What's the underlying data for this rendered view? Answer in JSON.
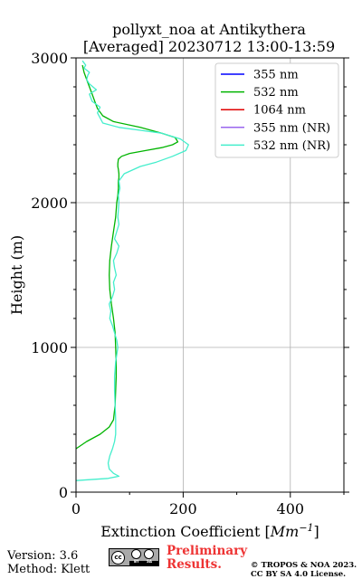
{
  "chart_data": {
    "type": "line",
    "title_line1": "pollyxt_noa at Antikythera",
    "title_line2": "[Averaged] 20230712 13:00-13:59",
    "xlabel_main": "Extinction Coefficient [",
    "xlabel_unit_base": "Mm",
    "xlabel_unit_exp": "−1",
    "xlabel_close": "]",
    "ylabel": "Height (m)",
    "xlim": [
      0,
      500
    ],
    "ylim": [
      0,
      3000
    ],
    "x_ticks": [
      0,
      200,
      400
    ],
    "x_tick_labels": [
      "0",
      "200",
      "400"
    ],
    "y_ticks": [
      0,
      1000,
      2000,
      3000
    ],
    "y_tick_labels": [
      "0",
      "1000",
      "2000",
      "3000"
    ],
    "grid": true,
    "legend_placement": "top-right",
    "series": [
      {
        "name": "355 nm",
        "color": "#0000ff",
        "x": [],
        "y": []
      },
      {
        "name": "532 nm",
        "color": "#00b400",
        "x": [
          0,
          20,
          45,
          62,
          70,
          73,
          74,
          75,
          75,
          74,
          73,
          70,
          66,
          63,
          62,
          63,
          66,
          70,
          74,
          76,
          78,
          79,
          79,
          80,
          80,
          79,
          78,
          78,
          79,
          85,
          100,
          130,
          160,
          180,
          190,
          185,
          160,
          120,
          70,
          50,
          40,
          35,
          30,
          25,
          20,
          15,
          12
        ],
        "y": [
          300,
          350,
          400,
          450,
          500,
          600,
          700,
          800,
          900,
          1000,
          1100,
          1200,
          1300,
          1400,
          1500,
          1600,
          1700,
          1800,
          1900,
          2000,
          2050,
          2100,
          2150,
          2170,
          2200,
          2230,
          2250,
          2270,
          2300,
          2320,
          2340,
          2360,
          2380,
          2400,
          2420,
          2450,
          2480,
          2520,
          2560,
          2600,
          2650,
          2700,
          2750,
          2800,
          2850,
          2900,
          2950
        ]
      },
      {
        "name": "1064 nm",
        "color": "#e00000",
        "x": [],
        "y": []
      },
      {
        "name": "355 nm (NR)",
        "color": "#9966ee",
        "x": [],
        "y": []
      },
      {
        "name": "532 nm (NR)",
        "color": "#44eecc",
        "x": [
          0,
          60,
          80,
          70,
          62,
          60,
          63,
          68,
          72,
          74,
          74,
          73,
          72,
          72,
          74,
          78,
          76,
          72,
          68,
          63,
          65,
          62,
          68,
          72,
          70,
          75,
          72,
          70,
          76,
          80,
          72,
          76,
          80,
          78,
          80,
          79,
          82,
          80,
          90,
          120,
          150,
          180,
          205,
          210,
          195,
          160,
          120,
          80,
          50,
          40,
          45,
          30,
          25,
          38,
          25,
          20,
          22,
          25,
          15,
          18,
          12
        ],
        "y": [
          80,
          95,
          110,
          130,
          160,
          200,
          250,
          300,
          350,
          400,
          500,
          600,
          700,
          800,
          900,
          1000,
          1050,
          1100,
          1150,
          1200,
          1250,
          1300,
          1350,
          1400,
          1450,
          1500,
          1550,
          1600,
          1650,
          1700,
          1750,
          1800,
          1850,
          1900,
          2000,
          2050,
          2100,
          2150,
          2200,
          2250,
          2280,
          2320,
          2360,
          2400,
          2440,
          2480,
          2500,
          2520,
          2550,
          2620,
          2660,
          2700,
          2750,
          2780,
          2820,
          2850,
          2880,
          2900,
          2930,
          2950,
          2980
        ]
      }
    ]
  },
  "footer": {
    "version": "Version: 3.6",
    "method": "Method: Klett",
    "preliminary_line1": "Preliminary",
    "preliminary_line2": "Results.",
    "copyright_line1": "© TROPOS & NOA 2023.",
    "copyright_line2": "CC BY SA 4.0 License.",
    "badge_cc": "cc",
    "badge_by": "BY",
    "badge_sa": "SA"
  }
}
